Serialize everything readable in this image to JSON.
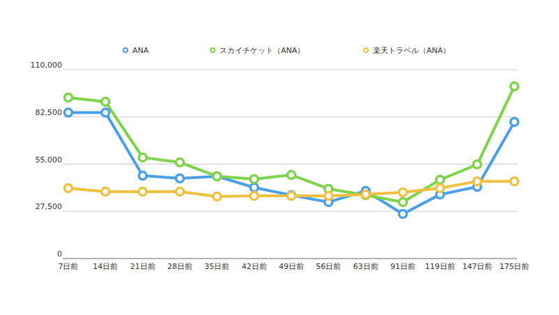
{
  "chart_data": {
    "type": "line",
    "categories": [
      "7日前",
      "14日前",
      "21日前",
      "28日前",
      "35日前",
      "42日前",
      "49日前",
      "56日前",
      "63日前",
      "91日前",
      "119日前",
      "147日前",
      "175日前"
    ],
    "series": [
      {
        "name": "ANA",
        "color": "#4a9fe8",
        "values": [
          85000,
          85000,
          48300,
          46700,
          47900,
          41400,
          36900,
          32900,
          39400,
          26000,
          37300,
          41800,
          79600
        ]
      },
      {
        "name": "スカイチケット（ANA）",
        "color": "#7dd44b",
        "values": [
          93800,
          91300,
          58900,
          56000,
          47900,
          46300,
          48700,
          40600,
          36900,
          32900,
          45900,
          54800,
          100300
        ]
      },
      {
        "name": "楽天トラベル（ANA）",
        "color": "#f0c040",
        "values": [
          41000,
          39000,
          39000,
          39000,
          36100,
          36500,
          36500,
          36500,
          37300,
          38600,
          41000,
          45000,
          45000
        ]
      }
    ],
    "ylim": [
      0,
      110000
    ],
    "yticks": [
      0,
      {
        "value": 27500,
        "label": "27,500"
      },
      {
        "value": 55000,
        "label": "55,000"
      },
      {
        "value": 82500,
        "label": "82,500"
      },
      {
        "value": 110000,
        "label": "110,000"
      }
    ],
    "grid": true,
    "legend": "top",
    "marker": "circle"
  }
}
